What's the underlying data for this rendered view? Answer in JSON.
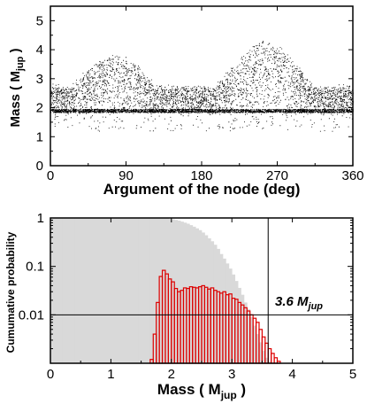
{
  "chart_data": [
    {
      "type": "scatter",
      "title": "",
      "xlabel": "Argument of the node (deg)",
      "ylabel_main": "Mass ( M",
      "ylabel_sub": "jup",
      "ylabel_close": " )",
      "xlim": [
        0,
        360
      ],
      "ylim": [
        0,
        5.5
      ],
      "xticks": [
        "0",
        "90",
        "180",
        "270",
        "360"
      ],
      "yticks": [
        "0",
        "1",
        "2",
        "3",
        "4",
        "5"
      ],
      "grid": false,
      "baseline_mass": 1.9,
      "clusters": [
        {
          "center_deg": 75,
          "peak_mass": 3.8,
          "spread_deg": 38
        },
        {
          "center_deg": 255,
          "peak_mass": 4.3,
          "spread_deg": 40
        }
      ],
      "notes": "dense cloud of simulated points; lower edge near 1.9 M_jup, two humps in node argument"
    },
    {
      "type": "bar",
      "title": "",
      "ylabel": "Cumumative probability",
      "xlabel_main": "Mass ( M",
      "xlabel_sub": "jup",
      "xlabel_close": " )",
      "xlim": [
        0,
        5
      ],
      "ylim_log": [
        0.001,
        1
      ],
      "y_scale": "log",
      "xticks": [
        "0",
        "1",
        "2",
        "3",
        "4",
        "5"
      ],
      "yticks": [
        "1",
        "0.1",
        "0.01"
      ],
      "threshold_mass": 3.6,
      "threshold_prob": 0.01,
      "annotation_main": "3.6 M",
      "annotation_sub": "jup",
      "series": [
        {
          "role": "cumulative",
          "color": "#d9d9d9",
          "bin_width": 0.05,
          "x": [
            0.0,
            0.05,
            0.1,
            0.15,
            0.2,
            0.25,
            0.3,
            0.35,
            0.4,
            0.45,
            0.5,
            0.55,
            0.6,
            0.65,
            0.7,
            0.75,
            0.8,
            0.85,
            0.9,
            0.95,
            1.0,
            1.05,
            1.1,
            1.15,
            1.2,
            1.25,
            1.3,
            1.35,
            1.4,
            1.45,
            1.5,
            1.55,
            1.6,
            1.65,
            1.7,
            1.75,
            1.8,
            1.85,
            1.9,
            1.95,
            2.0,
            2.05,
            2.1,
            2.15,
            2.2,
            2.25,
            2.3,
            2.35,
            2.4,
            2.45,
            2.5,
            2.55,
            2.6,
            2.65,
            2.7,
            2.75,
            2.8,
            2.85,
            2.9,
            2.95,
            3.0,
            3.05,
            3.1,
            3.15,
            3.2,
            3.25,
            3.3,
            3.35,
            3.4,
            3.45,
            3.5,
            3.55,
            3.6,
            3.65,
            3.7,
            3.75,
            3.8,
            3.85
          ],
          "values": [
            1,
            1,
            1,
            1,
            1,
            1,
            1,
            1,
            1,
            1,
            1,
            1,
            1,
            1,
            1,
            1,
            1,
            1,
            1,
            1,
            1,
            1,
            1,
            1,
            1,
            1,
            1,
            1,
            1,
            1,
            1,
            1,
            1,
            1,
            1,
            0.999,
            0.996,
            0.99,
            0.98,
            0.96,
            0.94,
            0.91,
            0.88,
            0.84,
            0.8,
            0.76,
            0.71,
            0.66,
            0.61,
            0.56,
            0.5,
            0.44,
            0.38,
            0.33,
            0.28,
            0.23,
            0.18,
            0.145,
            0.115,
            0.09,
            0.068,
            0.05,
            0.036,
            0.026,
            0.018,
            0.013,
            0.009,
            0.006,
            0.004,
            0.0027,
            0.0018,
            0.0013,
            0.0011,
            0.001,
            0.001,
            0.001,
            0.001,
            0.001
          ]
        },
        {
          "role": "histogram",
          "color": "#dd0000",
          "bin_width": 0.05,
          "x": [
            1.65,
            1.7,
            1.75,
            1.8,
            1.85,
            1.9,
            1.95,
            2.0,
            2.05,
            2.1,
            2.15,
            2.2,
            2.25,
            2.3,
            2.35,
            2.4,
            2.45,
            2.5,
            2.55,
            2.6,
            2.65,
            2.7,
            2.75,
            2.8,
            2.85,
            2.9,
            2.95,
            3.0,
            3.05,
            3.1,
            3.15,
            3.2,
            3.25,
            3.3,
            3.35,
            3.4,
            3.45,
            3.5,
            3.55,
            3.6,
            3.65,
            3.7,
            3.75
          ],
          "values": [
            0.0012,
            0.004,
            0.018,
            0.062,
            0.083,
            0.07,
            0.055,
            0.048,
            0.035,
            0.03,
            0.032,
            0.036,
            0.035,
            0.038,
            0.037,
            0.036,
            0.038,
            0.04,
            0.037,
            0.034,
            0.036,
            0.032,
            0.03,
            0.028,
            0.03,
            0.026,
            0.027,
            0.022,
            0.021,
            0.018,
            0.016,
            0.014,
            0.012,
            0.01,
            0.0085,
            0.007,
            0.005,
            0.0035,
            0.0026,
            0.002,
            0.0016,
            0.0013,
            0.0011
          ]
        }
      ]
    }
  ]
}
